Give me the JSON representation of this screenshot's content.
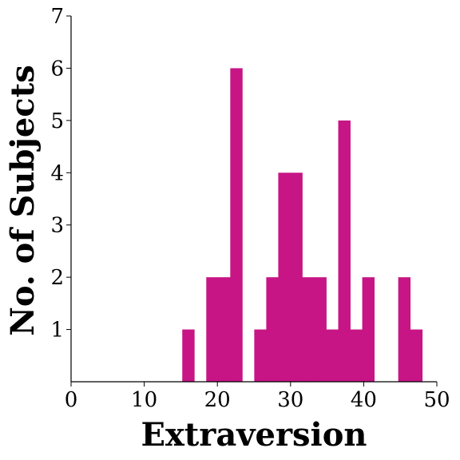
{
  "chart_data": {
    "type": "bar",
    "xlabel": "Extraversion",
    "ylabel": "No. of Subjects",
    "xlim": [
      0,
      50
    ],
    "ylim": [
      0,
      7
    ],
    "x_ticks": [
      0,
      10,
      20,
      30,
      40,
      50
    ],
    "y_ticks": [
      1,
      2,
      3,
      4,
      5,
      6,
      7
    ],
    "bin_width": 1.64,
    "bar_color": "#c71585",
    "grid": false,
    "bins": [
      {
        "start": 15.2,
        "value": 1
      },
      {
        "start": 18.48,
        "value": 2
      },
      {
        "start": 20.12,
        "value": 2
      },
      {
        "start": 21.76,
        "value": 6
      },
      {
        "start": 25.04,
        "value": 1
      },
      {
        "start": 26.68,
        "value": 2
      },
      {
        "start": 28.32,
        "value": 4
      },
      {
        "start": 29.96,
        "value": 4
      },
      {
        "start": 31.6,
        "value": 2
      },
      {
        "start": 33.24,
        "value": 2
      },
      {
        "start": 34.88,
        "value": 1
      },
      {
        "start": 36.52,
        "value": 5
      },
      {
        "start": 38.16,
        "value": 1
      },
      {
        "start": 39.8,
        "value": 2
      },
      {
        "start": 44.72,
        "value": 2
      },
      {
        "start": 46.36,
        "value": 1
      }
    ]
  }
}
